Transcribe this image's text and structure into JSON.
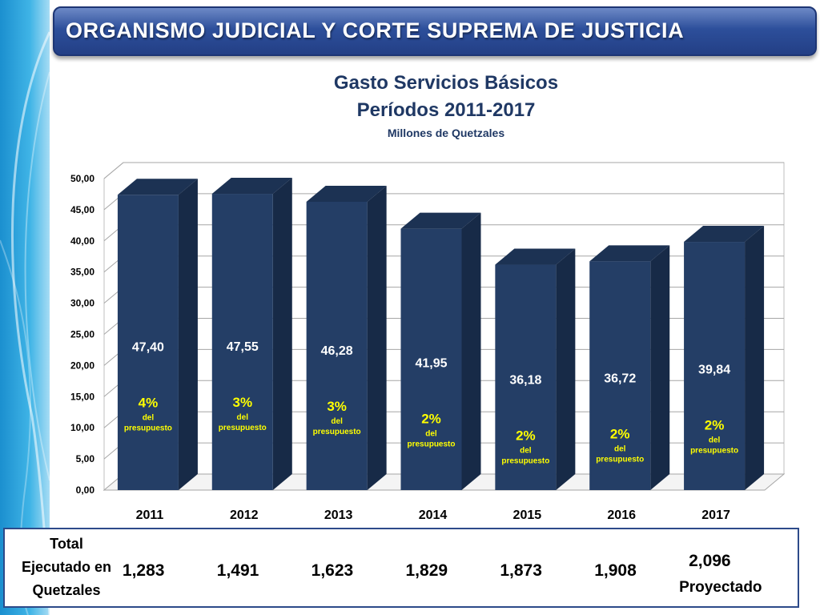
{
  "header": {
    "title": "ORGANISMO JUDICIAL Y CORTE SUPREMA DE JUSTICIA"
  },
  "chart_data": {
    "type": "bar",
    "title": "Gasto Servicios Básicos",
    "subtitle_line2": "Períodos 2011-2017",
    "unit_label": "Millones de Quetzales",
    "categories": [
      "2011",
      "2012",
      "2013",
      "2014",
      "2015",
      "2016",
      "2017"
    ],
    "values": [
      47.4,
      47.55,
      46.28,
      41.95,
      36.18,
      36.72,
      39.84
    ],
    "value_labels": [
      "47,40",
      "47,55",
      "46,28",
      "41,95",
      "36,18",
      "36,72",
      "39,84"
    ],
    "percent_labels": [
      "4%",
      "3%",
      "3%",
      "2%",
      "2%",
      "2%",
      "2%"
    ],
    "percent_sub_line1": "del",
    "percent_sub_line2": "presupuesto",
    "ylim": [
      0,
      50
    ],
    "y_ticks": [
      "0,00",
      "5,00",
      "10,00",
      "15,00",
      "20,00",
      "25,00",
      "30,00",
      "35,00",
      "40,00",
      "45,00",
      "50,00"
    ],
    "grid": true,
    "bar_color": "#243e66",
    "bar_side_color": "#172a47",
    "bar_top_color": "#1c3253",
    "value_label_color": "#ffffff",
    "percent_color": "#ffff00"
  },
  "totals": {
    "label_lines": [
      "Total",
      "Ejecutado en",
      "Quetzales"
    ],
    "values": [
      "1,283",
      "1,491",
      "1,623",
      "1,829",
      "1,873",
      "1,908",
      "2,096"
    ],
    "last_note": "Proyectado"
  }
}
